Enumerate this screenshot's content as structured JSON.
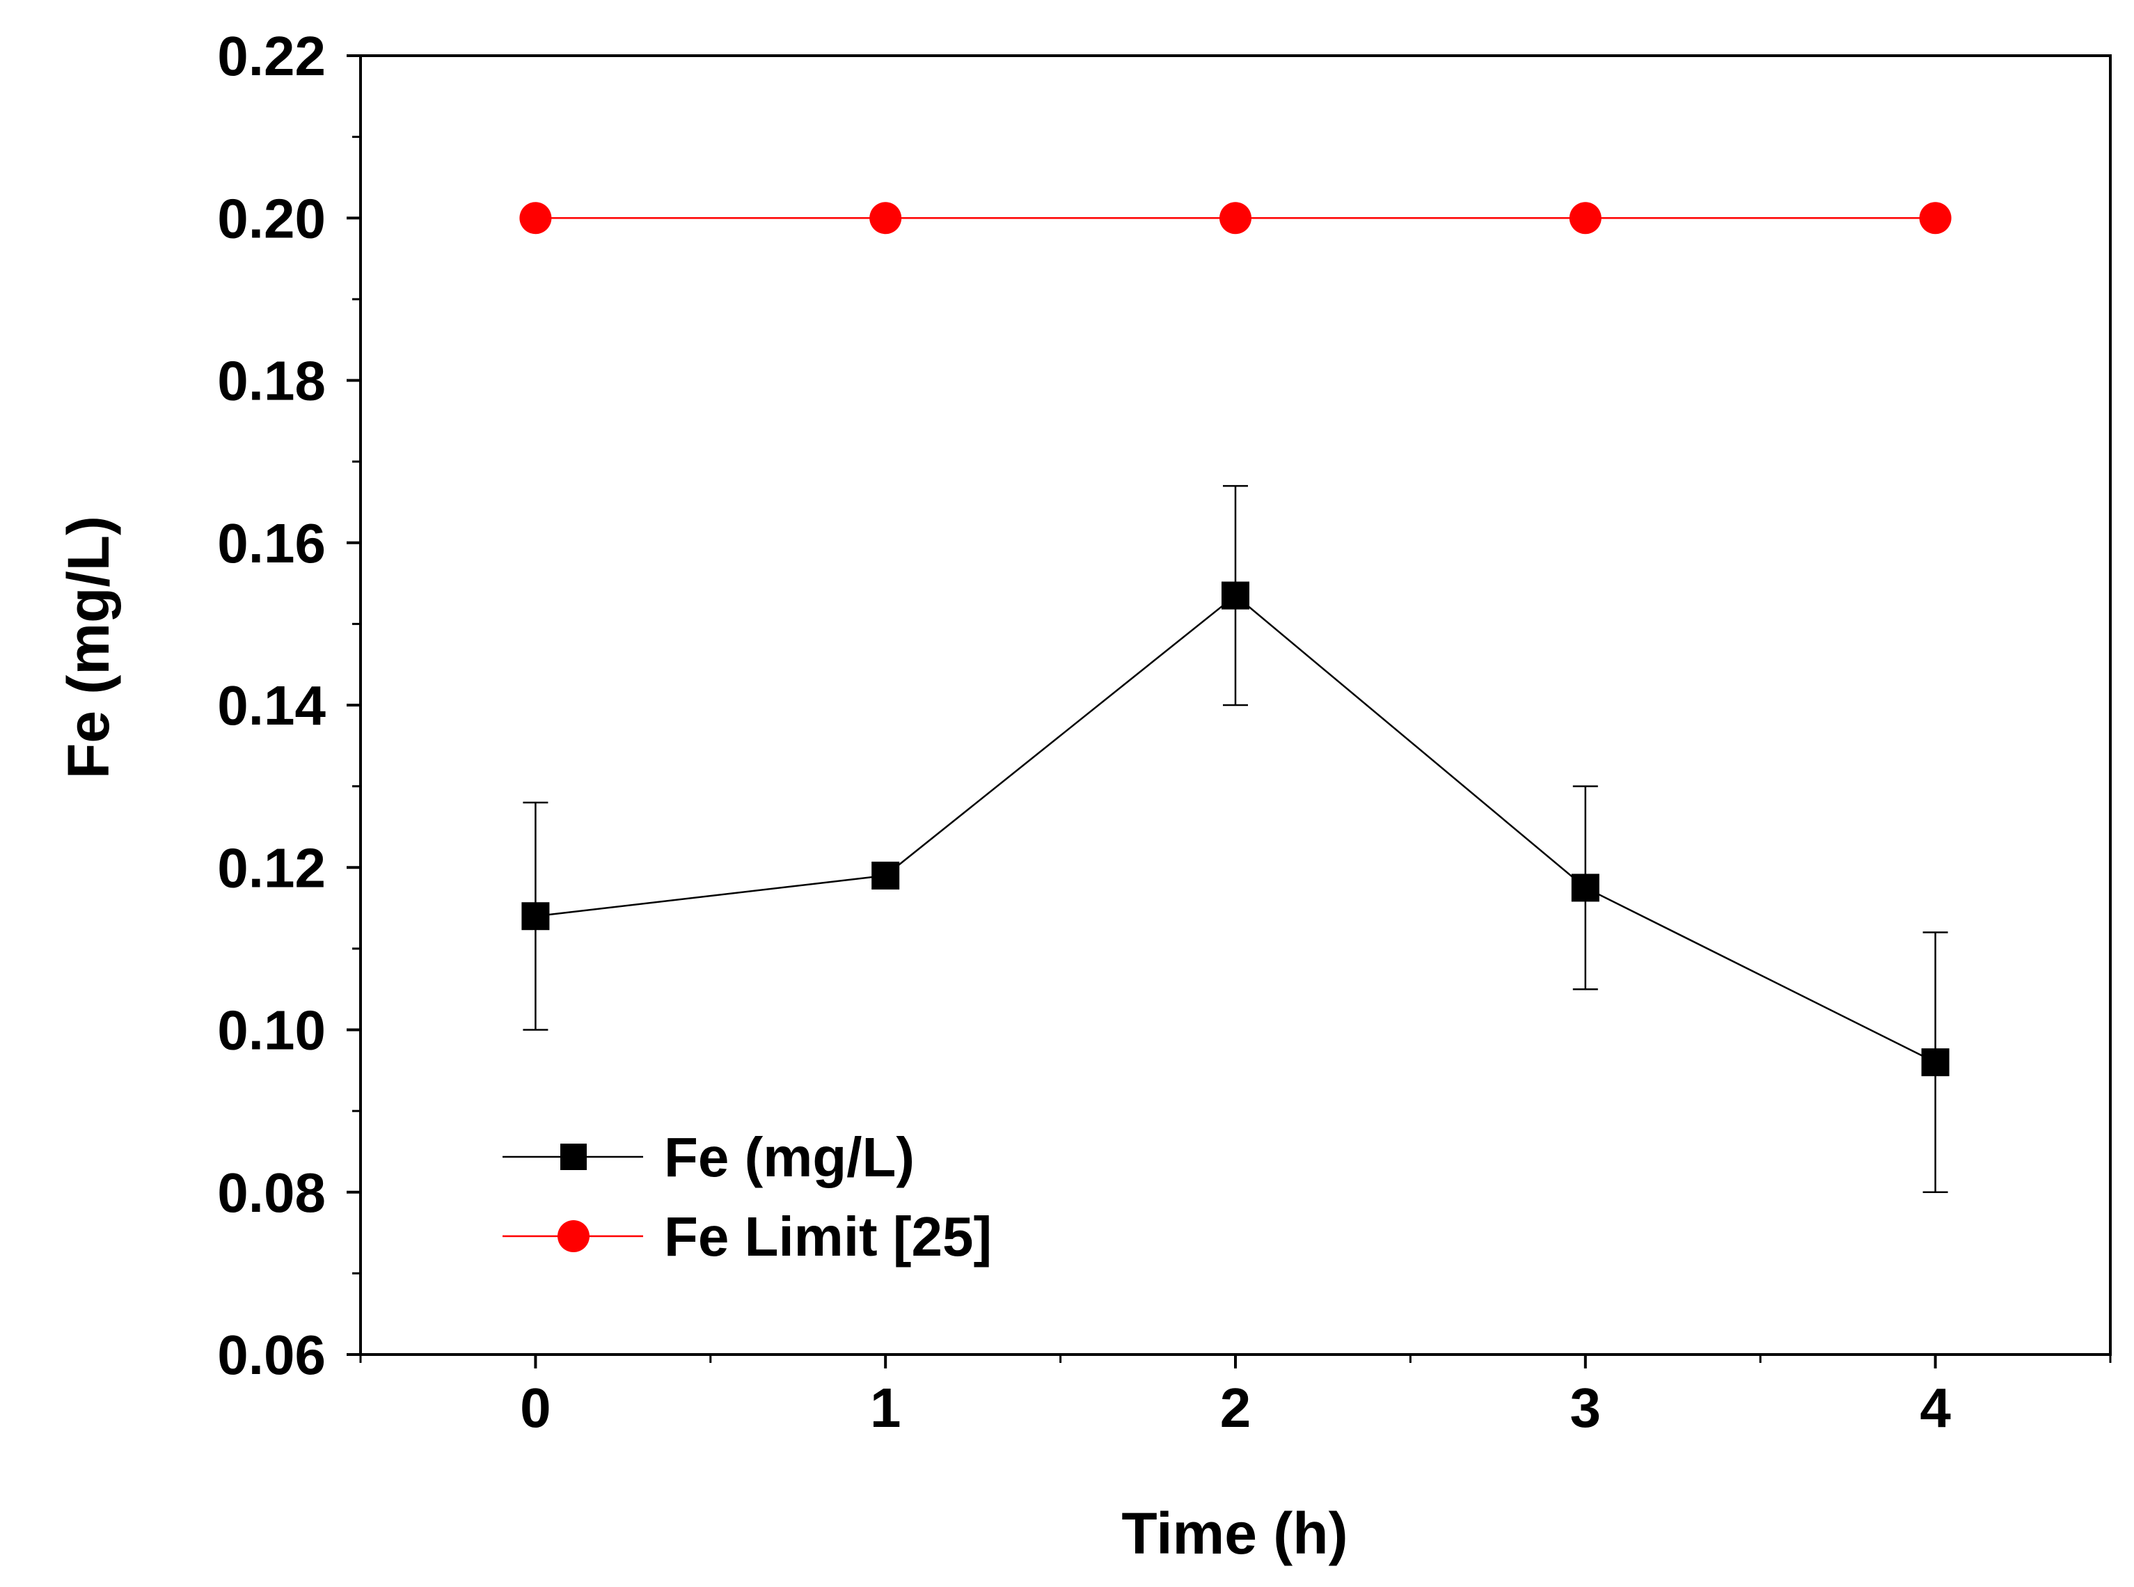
{
  "chart_data": {
    "type": "line",
    "title": "",
    "xlabel": "Time (h)",
    "ylabel": "Fe (mg/L)",
    "xlim": [
      -0.5,
      4.5
    ],
    "ylim": [
      0.06,
      0.22
    ],
    "x_ticks": [
      0,
      1,
      2,
      3,
      4
    ],
    "x_tick_labels": [
      "0",
      "1",
      "2",
      "3",
      "4"
    ],
    "x_minor_ticks": [
      -0.5,
      0.5,
      1.5,
      2.5,
      3.5,
      4.5
    ],
    "y_ticks": [
      0.06,
      0.08,
      0.1,
      0.12,
      0.14,
      0.16,
      0.18,
      0.2,
      0.22
    ],
    "y_tick_labels": [
      "0.06",
      "0.08",
      "0.10",
      "0.12",
      "0.14",
      "0.16",
      "0.18",
      "0.20",
      "0.22"
    ],
    "y_minor_ticks": [
      0.07,
      0.09,
      0.11,
      0.13,
      0.15,
      0.17,
      0.19,
      0.21
    ],
    "grid": false,
    "legend_position": "bottom-left",
    "series": [
      {
        "name": "Fe (mg/L)",
        "color": "#000000",
        "marker": "square",
        "x": [
          0,
          1,
          2,
          3,
          4
        ],
        "y": [
          0.114,
          0.119,
          0.1535,
          0.1175,
          0.096
        ],
        "error_low": [
          0.1,
          null,
          0.14,
          0.105,
          0.08
        ],
        "error_high": [
          0.128,
          null,
          0.167,
          0.13,
          0.112
        ]
      },
      {
        "name": "Fe Limit [25]",
        "color": "#ff0000",
        "marker": "circle",
        "x": [
          0,
          1,
          2,
          3,
          4
        ],
        "y": [
          0.2,
          0.2,
          0.2,
          0.2,
          0.2
        ]
      }
    ]
  }
}
